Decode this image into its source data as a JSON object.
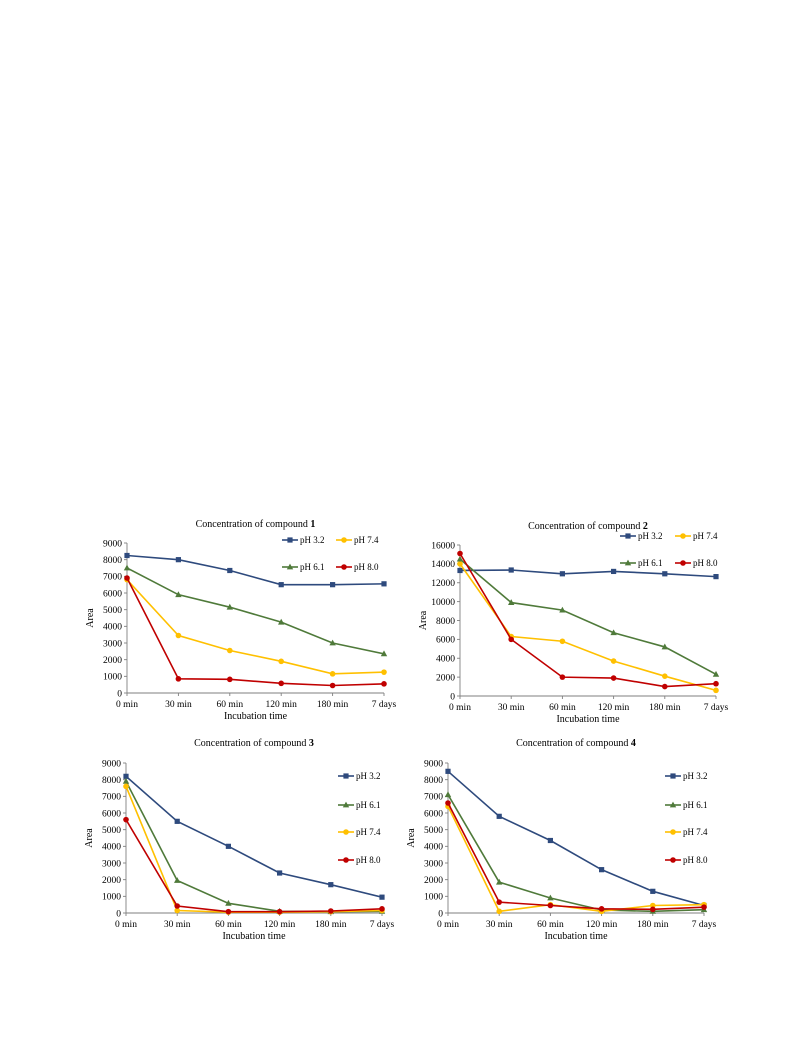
{
  "colors": {
    "pH 3.2": "#2e4a7d",
    "pH 7.4": "#ffc000",
    "pH 6.1": "#4f7a3a",
    "pH 8.0": "#c00000"
  },
  "markers": {
    "pH 3.2": "square",
    "pH 7.4": "circle",
    "pH 6.1": "triangle",
    "pH 8.0": "circle"
  },
  "chart_data": [
    {
      "type": "line",
      "title_prefix": "Concentration of compound ",
      "title_bold": "1",
      "xlabel": "Incubation time",
      "ylabel": "Area",
      "categories": [
        "0 min",
        "30 min",
        "60 min",
        "120 min",
        "180 min",
        "7 days"
      ],
      "ylim": [
        0,
        9000
      ],
      "yticks": [
        0,
        1000,
        2000,
        3000,
        4000,
        5000,
        6000,
        7000,
        8000,
        9000
      ],
      "legend": "top-right, two columns",
      "series": [
        {
          "name": "pH 3.2",
          "values": [
            8250,
            8000,
            7350,
            6500,
            6500,
            6550
          ]
        },
        {
          "name": "pH 7.4",
          "values": [
            6800,
            3450,
            2550,
            1900,
            1150,
            1250
          ]
        },
        {
          "name": "pH 6.1",
          "values": [
            7500,
            5900,
            5150,
            4250,
            3000,
            2350
          ]
        },
        {
          "name": "pH 8.0",
          "values": [
            6900,
            850,
            820,
            580,
            450,
            550
          ]
        }
      ]
    },
    {
      "type": "line",
      "title_prefix": "Concentration of compound ",
      "title_bold": "2",
      "xlabel": "Incubation time",
      "ylabel": "Area",
      "categories": [
        "0 min",
        "30 min",
        "60 min",
        "120 min",
        "180 min",
        "7 days"
      ],
      "ylim": [
        0,
        16000
      ],
      "yticks": [
        0,
        2000,
        4000,
        6000,
        8000,
        10000,
        12000,
        14000,
        16000
      ],
      "legend": "top-right, two columns",
      "series": [
        {
          "name": "pH 3.2",
          "values": [
            13300,
            13350,
            12950,
            13200,
            12950,
            12650
          ]
        },
        {
          "name": "pH 7.4",
          "values": [
            14000,
            6300,
            5800,
            3700,
            2100,
            600
          ]
        },
        {
          "name": "pH 6.1",
          "values": [
            14500,
            9900,
            9100,
            6700,
            5200,
            2300
          ]
        },
        {
          "name": "pH 8.0",
          "values": [
            15100,
            6000,
            2000,
            1900,
            1000,
            1300
          ]
        }
      ]
    },
    {
      "type": "line",
      "title_prefix": "Concentration of compound ",
      "title_bold": "3",
      "xlabel": "Incubation time",
      "ylabel": "Area",
      "categories": [
        "0 min",
        "30 min",
        "60 min",
        "120 min",
        "180 min",
        "7 days"
      ],
      "ylim": [
        0,
        9000
      ],
      "yticks": [
        0,
        1000,
        2000,
        3000,
        4000,
        5000,
        6000,
        7000,
        8000,
        9000
      ],
      "legend": "right, single column",
      "series": [
        {
          "name": "pH 3.2",
          "values": [
            8200,
            5500,
            4000,
            2400,
            1700,
            950
          ]
        },
        {
          "name": "pH 6.1",
          "values": [
            7900,
            1950,
            580,
            100,
            80,
            100
          ]
        },
        {
          "name": "pH 7.4",
          "values": [
            7600,
            150,
            50,
            50,
            80,
            150
          ]
        },
        {
          "name": "pH 8.0",
          "values": [
            5600,
            420,
            80,
            80,
            120,
            250
          ]
        }
      ]
    },
    {
      "type": "line",
      "title_prefix": "Concentration of compound ",
      "title_bold": "4",
      "xlabel": "Incubation time",
      "ylabel": "Area",
      "categories": [
        "0 min",
        "30 min",
        "60 min",
        "120 min",
        "180 min",
        "7 days"
      ],
      "ylim": [
        0,
        9000
      ],
      "yticks": [
        0,
        1000,
        2000,
        3000,
        4000,
        5000,
        6000,
        7000,
        8000,
        9000
      ],
      "legend": "right, single column",
      "series": [
        {
          "name": "pH 3.2",
          "values": [
            8500,
            5800,
            4350,
            2600,
            1300,
            450
          ]
        },
        {
          "name": "pH 6.1",
          "values": [
            7100,
            1850,
            900,
            180,
            100,
            200
          ]
        },
        {
          "name": "pH 7.4",
          "values": [
            6400,
            100,
            500,
            100,
            450,
            500
          ]
        },
        {
          "name": "pH 8.0",
          "values": [
            6600,
            650,
            450,
            250,
            220,
            350
          ]
        }
      ]
    }
  ]
}
